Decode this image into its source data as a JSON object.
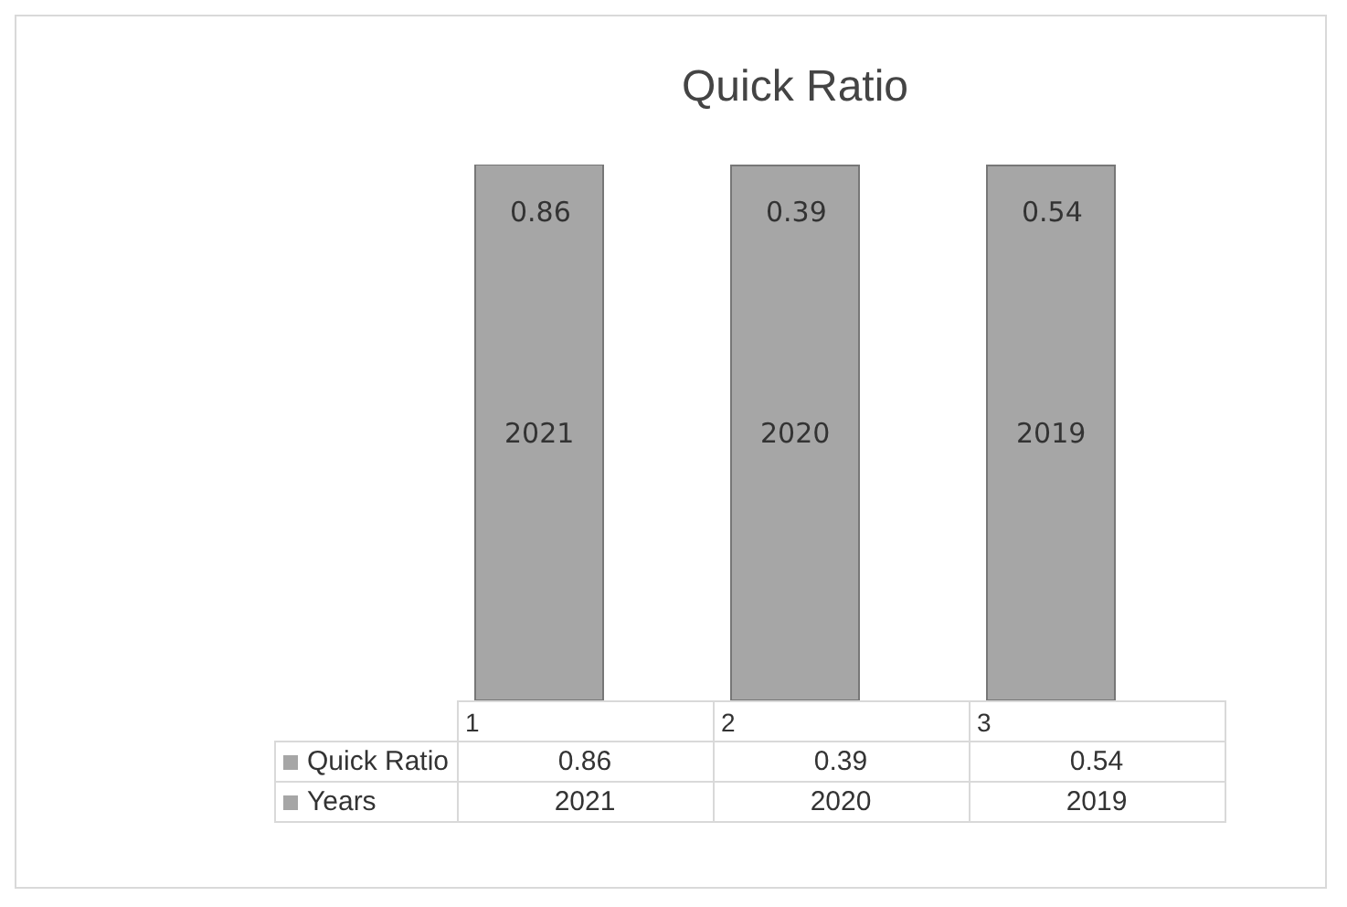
{
  "chart_data": {
    "type": "bar",
    "title": "Quick Ratio",
    "categories": [
      "1",
      "2",
      "3"
    ],
    "stacked": true,
    "data_labels": true,
    "tick_labels": "x",
    "legend": "bottom",
    "series": [
      {
        "name": "Years",
        "color": "#a6a6a6",
        "values": [
          2021,
          2020,
          2019
        ]
      },
      {
        "name": "Quick Ratio",
        "color": "#a6a6a6",
        "values": [
          0.86,
          0.39,
          0.54
        ]
      }
    ],
    "annotations": [
      {
        "text": "0.86",
        "x": "1",
        "y": 1840
      },
      {
        "text": "0.39",
        "x": "2",
        "y": 1840
      },
      {
        "text": "0.54",
        "x": "3",
        "y": 1840
      },
      {
        "text": "2021",
        "x": "1",
        "y": 1010
      },
      {
        "text": "2020",
        "x": "2",
        "y": 1010
      },
      {
        "text": "2019",
        "x": "3",
        "y": 1010
      }
    ]
  }
}
